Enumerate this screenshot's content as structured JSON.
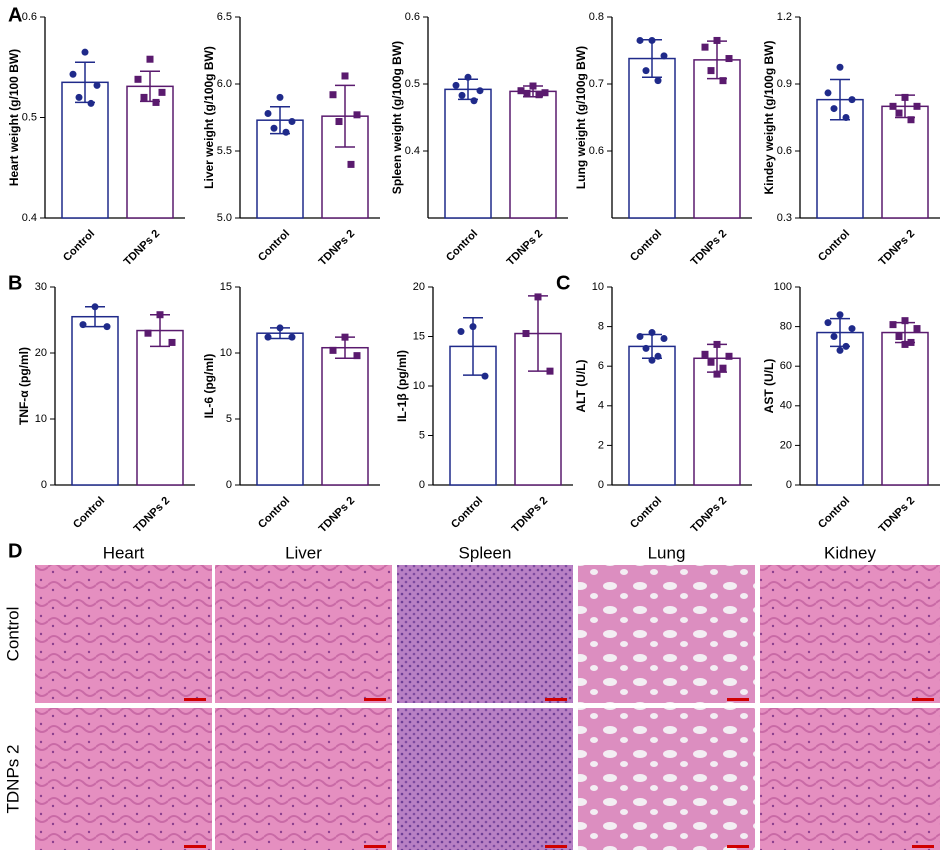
{
  "panel_labels": [
    "A",
    "B",
    "C",
    "D"
  ],
  "chart_data": [
    {
      "type": "bar",
      "ylabel": "Heart weight (g/100 BW)",
      "categories": [
        "Control",
        "TDNPs 2"
      ],
      "values": [
        0.535,
        0.531
      ],
      "errors": [
        0.02,
        0.015
      ],
      "points": [
        [
          0.565,
          0.543,
          0.532,
          0.52,
          0.514
        ],
        [
          0.558,
          0.538,
          0.525,
          0.52,
          0.515
        ]
      ],
      "colors": [
        "#1f2a8a",
        "#5a1a6e"
      ],
      "ylim": [
        0.4,
        0.6
      ],
      "yticks": [
        0.4,
        0.5,
        0.6
      ]
    },
    {
      "type": "bar",
      "ylabel": "Liver weight (g/100g BW)",
      "categories": [
        "Control",
        "TDNPs 2"
      ],
      "values": [
        5.73,
        5.76
      ],
      "errors": [
        0.1,
        0.23
      ],
      "points": [
        [
          5.9,
          5.78,
          5.72,
          5.67,
          5.64
        ],
        [
          6.06,
          5.92,
          5.77,
          5.72,
          5.4
        ]
      ],
      "colors": [
        "#1f2a8a",
        "#5a1a6e"
      ],
      "ylim": [
        5,
        6.5
      ],
      "yticks": [
        {
          "value": 5,
          "label": "5.0"
        },
        5.5,
        {
          "value": 6,
          "label": "6.0"
        },
        6.5
      ]
    },
    {
      "type": "bar",
      "ylabel": "Spleen weight (g/100g BW)",
      "categories": [
        "Control",
        "TDNPs 2"
      ],
      "values": [
        0.492,
        0.489
      ],
      "errors": [
        0.015,
        0.008
      ],
      "points": [
        [
          0.51,
          0.498,
          0.49,
          0.483,
          0.475
        ],
        [
          0.497,
          0.49,
          0.487,
          0.486,
          0.484
        ]
      ],
      "colors": [
        "#1f2a8a",
        "#5a1a6e"
      ],
      "ylim": [
        0.3,
        0.6
      ],
      "yticks": [
        0.4,
        0.5,
        0.6
      ]
    },
    {
      "type": "bar",
      "ylabel": "Lung weight (g/100g BW)",
      "categories": [
        "Control",
        "TDNPs 2"
      ],
      "values": [
        0.738,
        0.736
      ],
      "errors": [
        0.028,
        0.028
      ],
      "points": [
        [
          0.765,
          0.765,
          0.742,
          0.72,
          0.705
        ],
        [
          0.765,
          0.755,
          0.738,
          0.72,
          0.705
        ]
      ],
      "colors": [
        "#1f2a8a",
        "#5a1a6e"
      ],
      "ylim": [
        0.5,
        0.8
      ],
      "yticks": [
        0.6,
        0.7,
        0.8
      ]
    },
    {
      "type": "bar",
      "ylabel": "Kindey weight (g/100g BW)",
      "categories": [
        "Control",
        "TDNPs 2"
      ],
      "values": [
        0.83,
        0.8
      ],
      "errors": [
        0.09,
        0.05
      ],
      "points": [
        [
          0.975,
          0.86,
          0.83,
          0.79,
          0.75
        ],
        [
          0.84,
          0.8,
          0.8,
          0.77,
          0.74
        ]
      ],
      "colors": [
        "#1f2a8a",
        "#5a1a6e"
      ],
      "ylim": [
        0.3,
        1.2
      ],
      "yticks": [
        0.3,
        0.6,
        0.9,
        1.2
      ]
    },
    {
      "type": "bar",
      "ylabel": "TNF-α (pg/ml)",
      "categories": [
        "Control",
        "TDNPs 2"
      ],
      "values": [
        25.5,
        23.4
      ],
      "errors": [
        1.5,
        2.4
      ],
      "points": [
        [
          27,
          24.3,
          24
        ],
        [
          25.8,
          23,
          21.6
        ]
      ],
      "colors": [
        "#1f2a8a",
        "#5a1a6e"
      ],
      "ylim": [
        0,
        30
      ],
      "yticks": [
        0,
        10,
        20,
        30
      ]
    },
    {
      "type": "bar",
      "ylabel": "IL-6 (pg/ml)",
      "categories": [
        "Control",
        "TDNPs 2"
      ],
      "values": [
        11.5,
        10.4
      ],
      "errors": [
        0.4,
        0.8
      ],
      "points": [
        [
          11.9,
          11.2,
          11.2
        ],
        [
          11.2,
          10.2,
          9.8
        ]
      ],
      "colors": [
        "#1f2a8a",
        "#5a1a6e"
      ],
      "ylim": [
        0,
        15
      ],
      "yticks": [
        0,
        5,
        10,
        15
      ]
    },
    {
      "type": "bar",
      "ylabel": "IL-1β (pg/ml)",
      "categories": [
        "Control",
        "TDNPs 2"
      ],
      "values": [
        14,
        15.3
      ],
      "errors": [
        2.9,
        3.8
      ],
      "points": [
        [
          16,
          15.5,
          11
        ],
        [
          19,
          15.3,
          11.5
        ]
      ],
      "colors": [
        "#1f2a8a",
        "#5a1a6e"
      ],
      "ylim": [
        0,
        20
      ],
      "yticks": [
        0,
        5,
        10,
        15,
        20
      ]
    },
    {
      "type": "bar",
      "ylabel": "ALT (U/L)",
      "categories": [
        "Control",
        "TDNPs 2"
      ],
      "values": [
        7,
        6.4
      ],
      "errors": [
        0.6,
        0.7
      ],
      "points": [
        [
          7.7,
          7.5,
          7.4,
          6.9,
          6.5,
          6.3
        ],
        [
          7.1,
          6.6,
          6.5,
          6.2,
          5.9,
          5.6
        ]
      ],
      "colors": [
        "#1f2a8a",
        "#5a1a6e"
      ],
      "ylim": [
        0,
        10
      ],
      "yticks": [
        0,
        2,
        4,
        6,
        8,
        10
      ]
    },
    {
      "type": "bar",
      "ylabel": "AST (U/L)",
      "categories": [
        "Control",
        "TDNPs 2"
      ],
      "values": [
        77,
        77
      ],
      "errors": [
        7,
        5
      ],
      "points": [
        [
          86,
          82,
          79,
          75,
          70,
          68
        ],
        [
          83,
          81,
          79,
          75,
          72,
          71
        ]
      ],
      "colors": [
        "#1f2a8a",
        "#5a1a6e"
      ],
      "ylim": [
        0,
        100
      ],
      "yticks": [
        0,
        20,
        40,
        60,
        80,
        100
      ]
    }
  ],
  "histology": {
    "columns": [
      "Heart",
      "Liver",
      "Spleen",
      "Lung",
      "Kidney"
    ],
    "rows": [
      "Control",
      "TDNPs 2"
    ]
  }
}
